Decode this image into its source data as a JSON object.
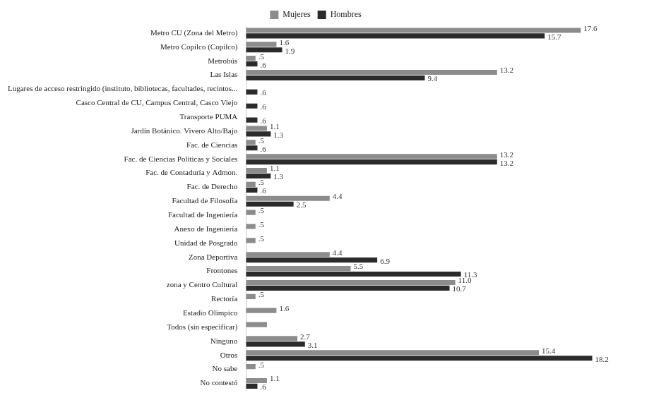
{
  "chart_data": {
    "type": "bar",
    "orientation": "horizontal",
    "categories": [
      "Metro CU (Zona del Metro)",
      "Metro Copilco (Copilco)",
      "Metrobús",
      "Las Islas",
      "Lugares de acceso restringido (instituto, bibliotecas, facultades, recintos...",
      "Casco Central de CU, Campus Central, Casco Viejo",
      "Transporte PUMA",
      "Jardín Botánico. Vivero Alto/Bajo",
      "Fac. de Ciencias",
      "Fac. de Ciencias Políticas y Sociales",
      "Fac. de Contaduría y Admon.",
      "Fac. de Derecho",
      "Facultad de Filosofía",
      "Facultad de Ingeniería",
      "Anexo de Ingeniería",
      "Unidad de Posgrado",
      "Zona Deportiva",
      "Frontones",
      "zona y Centro Cultural",
      "Rectoría",
      "Estadio Olímpico",
      "Todos (sin especificar)",
      "Ninguno",
      "Otros",
      "No sabe",
      "No contestó"
    ],
    "series": [
      {
        "name": "Mujeres",
        "color": "#8c8c8c",
        "values": [
          17.6,
          1.6,
          0.5,
          13.2,
          null,
          null,
          null,
          1.1,
          0.5,
          13.2,
          1.1,
          0.5,
          4.4,
          0.5,
          0.5,
          0.5,
          4.4,
          5.5,
          11.0,
          0.5,
          1.6,
          1.1,
          2.7,
          15.4,
          0.5,
          1.1
        ],
        "value_labels": [
          "17.6",
          "1.6",
          ".5",
          "13.2",
          null,
          null,
          null,
          "1.1",
          ".5",
          "13.2",
          "1.1",
          ".5",
          "4.4",
          ".5",
          ".5",
          ".5",
          "4.4",
          "5.5",
          "11.0",
          ".5",
          "1.6",
          null,
          "2.7",
          "15.4",
          ".5",
          "1.1"
        ]
      },
      {
        "name": "Hombres",
        "color": "#2b2b2b",
        "values": [
          15.7,
          1.9,
          0.6,
          9.4,
          0.6,
          0.6,
          0.6,
          1.3,
          0.6,
          13.2,
          1.3,
          0.6,
          2.5,
          null,
          null,
          null,
          6.9,
          11.3,
          10.7,
          null,
          null,
          null,
          3.1,
          18.2,
          null,
          0.6
        ],
        "value_labels": [
          "15.7",
          "1.9",
          ".6",
          "9.4",
          ".6",
          ".6",
          ".6",
          "1.3",
          ".6",
          "13.2",
          "1.3",
          ".6",
          "2.5",
          null,
          null,
          null,
          "6.9",
          "11.3",
          "10.7",
          null,
          null,
          null,
          "3.1",
          "18.2",
          null,
          ".6"
        ]
      }
    ],
    "data_labels": true,
    "tick_labels": "y",
    "legend": "top",
    "grid": false
  }
}
